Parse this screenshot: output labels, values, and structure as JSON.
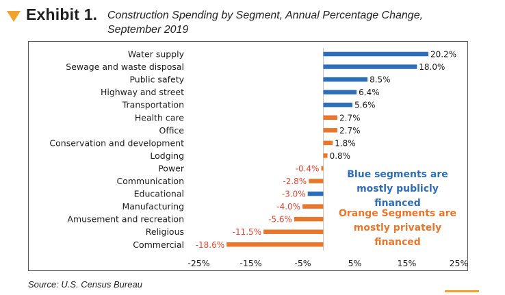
{
  "header": {
    "exhibit": "Exhibit 1.",
    "title_line1": "Construction Spending by Segment, Annual Percentage Change,",
    "title_line2": "September 2019"
  },
  "source": "Source: U.S. Census Bureau",
  "notes": {
    "blue": [
      "Blue segments are",
      "mostly publicly financed"
    ],
    "orange": [
      "Orange Segments are",
      "mostly privately",
      "financed"
    ]
  },
  "colors": {
    "blue": "#2e6db7",
    "orange": "#e8772e",
    "accent": "#f0a22a"
  },
  "chart_data": {
    "type": "bar",
    "orientation": "horizontal",
    "categories": [
      "Water supply",
      "Sewage and waste disposal",
      "Public safety",
      "Highway and street",
      "Transportation",
      "Health care",
      "Office",
      "Conservation and development",
      "Lodging",
      "Power",
      "Communication",
      "Educational",
      "Manufacturing",
      "Amusement and recreation",
      "Religious",
      "Commercial"
    ],
    "values": [
      20.2,
      18.0,
      8.5,
      6.4,
      5.6,
      2.7,
      2.7,
      1.8,
      0.8,
      -0.4,
      -2.8,
      -3.0,
      -4.0,
      -5.6,
      -11.5,
      -18.6
    ],
    "value_labels": [
      "20.2%",
      "18.0%",
      "8.5%",
      "6.4%",
      "5.6%",
      "2.7%",
      "2.7%",
      "1.8%",
      "0.8%",
      "-0.4%",
      "-2.8%",
      "-3.0%",
      "-4.0%",
      "-5.6%",
      "-11.5%",
      "-18.6%"
    ],
    "bar_colors": [
      "blue",
      "blue",
      "blue",
      "blue",
      "blue",
      "orange",
      "orange",
      "orange",
      "orange",
      "orange",
      "orange",
      "blue",
      "orange",
      "orange",
      "orange",
      "orange"
    ],
    "xlim": [
      -25,
      25
    ],
    "x_ticks": [
      "-25%",
      "-15%",
      "-5%",
      "5%",
      "15%",
      "25%"
    ],
    "grid": false,
    "legend": "none"
  }
}
